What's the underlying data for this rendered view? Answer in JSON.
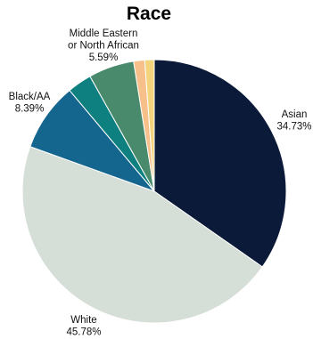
{
  "chart_data": {
    "type": "pie",
    "title": "Race",
    "start_angle_deg": 0,
    "direction": "clockwise",
    "slices": [
      {
        "label": "Asian",
        "value": 34.73,
        "value_text": "34.73%",
        "color": "#0b1a38",
        "show_label": true
      },
      {
        "label": "White",
        "value": 45.78,
        "value_text": "45.78%",
        "color": "#d6ded8",
        "show_label": true
      },
      {
        "label": "Black/AA",
        "value": 8.39,
        "value_text": "8.39%",
        "color": "#15668e",
        "show_label": true
      },
      {
        "label": "",
        "value": 3.0,
        "value_text": "",
        "color": "#0e8080",
        "show_label": false
      },
      {
        "label": "Middle Eastern or North African",
        "value": 5.59,
        "value_text": "5.59%",
        "color": "#4a8a6c",
        "show_label": true
      },
      {
        "label": "",
        "value": 1.35,
        "value_text": "",
        "color": "#f7c08a",
        "show_label": false
      },
      {
        "label": "",
        "value": 1.16,
        "value_text": "",
        "color": "#f3d37b",
        "show_label": false
      }
    ],
    "slice_border_color": "#ffffff"
  }
}
